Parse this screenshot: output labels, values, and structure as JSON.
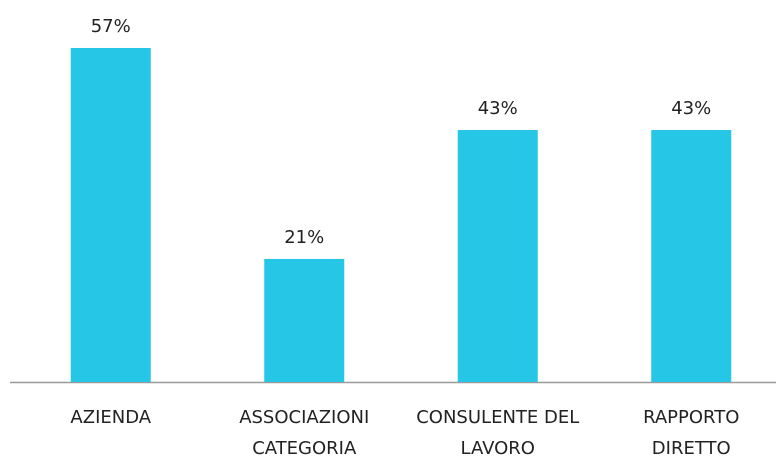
{
  "chart_data": {
    "type": "bar",
    "categories": [
      "AZIENDA",
      "ASSOCIAZIONI\nCATEGORIA",
      "CONSULENTE DEL\nLAVORO",
      "RAPPORTO\nDIRETTO"
    ],
    "values": [
      57,
      21,
      43,
      43
    ],
    "value_labels": [
      "57%",
      "21%",
      "43%",
      "43%"
    ],
    "color": "#26c6e6"
  }
}
